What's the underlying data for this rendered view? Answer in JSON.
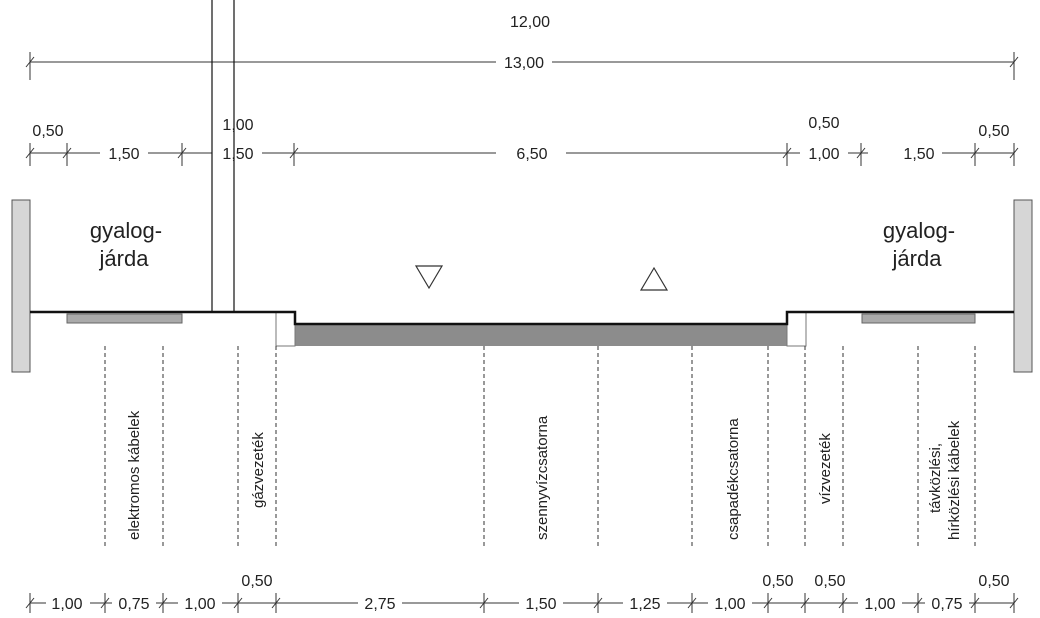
{
  "top_dims": {
    "total_12": "12,00",
    "total_13": "13,00",
    "row2": [
      "0,50",
      "1,50",
      "1,00",
      "1,50",
      "6,50",
      "0,50",
      "1,00",
      "1,50",
      "0,50"
    ]
  },
  "sidewalk": {
    "left": [
      "gyalog-",
      "járda"
    ],
    "right": [
      "gyalog-",
      "járda"
    ]
  },
  "utilities": {
    "elektromos": "elektromos kábelek",
    "gaz": "gázvezeték",
    "szenny": "szennyvízcsatorna",
    "csapadek": "csapadékcsatorna",
    "viz": "vízvezeték",
    "tavkozles": [
      "távközlési,",
      "hírközlési kábelek"
    ]
  },
  "bottom_dims": [
    "1,00",
    "0,75",
    "1,00",
    "0,50",
    "2,75",
    "1,50",
    "1,25",
    "1,00",
    "0,50",
    "0,50",
    "1,00",
    "0,75",
    "0,50"
  ],
  "colors": {
    "road": "#8c8c8c",
    "line": "#111111",
    "cable": "#aaaaaa",
    "wall": "#d6d6d6"
  }
}
